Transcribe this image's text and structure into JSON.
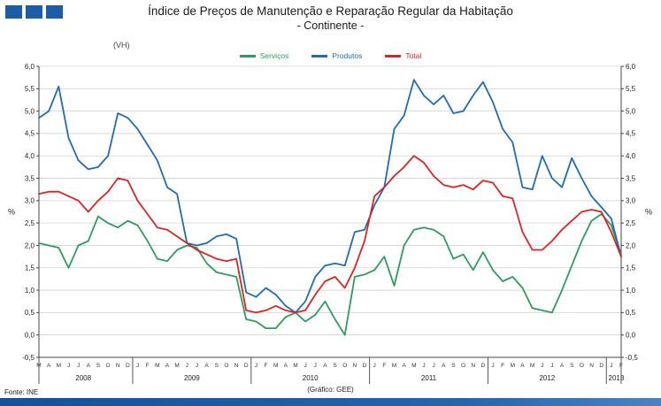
{
  "chart_data": {
    "type": "line",
    "title": "Índice de Preços de Manutenção e Reparação Regular da Habitação",
    "subtitle": "- Continente -",
    "unit_note": "(VH)",
    "ylabel_left": "%",
    "ylabel_right": "%",
    "ylim": [
      -0.5,
      6.0
    ],
    "ytick_step": 0.5,
    "ytick_labels": [
      "6,0",
      "5,5",
      "5,0",
      "4,5",
      "4,0",
      "3,5",
      "3,0",
      "2,5",
      "2,0",
      "1,5",
      "1,0",
      "0,5",
      "0,0",
      "-0,5"
    ],
    "grid": true,
    "legend_position": "top",
    "x_months": [
      "M",
      "A",
      "M",
      "J",
      "J",
      "A",
      "S",
      "O",
      "N",
      "D",
      "J",
      "F",
      "M",
      "A",
      "M",
      "J",
      "J",
      "A",
      "S",
      "O",
      "N",
      "D",
      "J",
      "F",
      "M",
      "A",
      "M",
      "J",
      "J",
      "A",
      "S",
      "O",
      "N",
      "D",
      "J",
      "F",
      "M",
      "A",
      "M",
      "J",
      "J",
      "A",
      "S",
      "O",
      "N",
      "D",
      "J",
      "F",
      "M",
      "A",
      "M",
      "J",
      "J",
      "A",
      "S",
      "O",
      "N",
      "D",
      "J",
      "F"
    ],
    "year_groups": [
      {
        "label": "2008",
        "count": 10
      },
      {
        "label": "2009",
        "count": 12
      },
      {
        "label": "2010",
        "count": 12
      },
      {
        "label": "2011",
        "count": 12
      },
      {
        "label": "2012",
        "count": 12
      },
      {
        "label": "2013",
        "count": 2
      }
    ],
    "series": [
      {
        "name": "Serviços",
        "color": "#2e9b5f",
        "values": [
          2.05,
          2.0,
          1.95,
          1.5,
          2.0,
          2.1,
          2.65,
          2.5,
          2.4,
          2.55,
          2.45,
          2.1,
          1.7,
          1.65,
          1.9,
          2.0,
          1.95,
          1.6,
          1.4,
          1.35,
          1.3,
          0.35,
          0.3,
          0.15,
          0.15,
          0.4,
          0.5,
          0.3,
          0.45,
          0.75,
          0.35,
          0.0,
          1.3,
          1.35,
          1.45,
          1.75,
          1.1,
          2.0,
          2.35,
          2.4,
          2.35,
          2.2,
          1.7,
          1.8,
          1.45,
          1.85,
          1.45,
          1.2,
          1.3,
          1.05,
          0.6,
          0.55,
          0.5,
          1.0,
          1.55,
          2.1,
          2.55,
          2.7,
          2.45,
          1.8
        ]
      },
      {
        "name": "Produtos",
        "color": "#1f6cb0",
        "values": [
          4.85,
          5.0,
          5.55,
          4.4,
          3.9,
          3.7,
          3.75,
          4.0,
          4.95,
          4.85,
          4.6,
          4.25,
          3.9,
          3.3,
          3.15,
          2.05,
          2.0,
          2.05,
          2.2,
          2.25,
          2.15,
          0.95,
          0.85,
          1.05,
          0.9,
          0.65,
          0.5,
          0.75,
          1.3,
          1.55,
          1.6,
          1.55,
          2.3,
          2.35,
          2.9,
          3.3,
          4.6,
          4.9,
          5.7,
          5.35,
          5.15,
          5.35,
          4.95,
          5.0,
          5.35,
          5.65,
          5.2,
          4.6,
          4.3,
          3.3,
          3.25,
          4.0,
          3.5,
          3.3,
          3.95,
          3.5,
          3.1,
          2.85,
          2.6,
          1.75
        ]
      },
      {
        "name": "Total",
        "color": "#d92525",
        "values": [
          3.15,
          3.2,
          3.2,
          3.1,
          3.0,
          2.75,
          3.0,
          3.2,
          3.5,
          3.45,
          3.0,
          2.7,
          2.4,
          2.35,
          2.2,
          2.05,
          1.9,
          1.8,
          1.7,
          1.65,
          1.7,
          0.55,
          0.5,
          0.55,
          0.65,
          0.55,
          0.5,
          0.55,
          0.9,
          1.2,
          1.3,
          1.05,
          1.5,
          2.1,
          3.1,
          3.3,
          3.55,
          3.75,
          4.0,
          3.85,
          3.55,
          3.35,
          3.3,
          3.35,
          3.25,
          3.45,
          3.4,
          3.1,
          3.05,
          2.3,
          1.9,
          1.9,
          2.1,
          2.35,
          2.55,
          2.75,
          2.8,
          2.75,
          2.3,
          1.75
        ]
      }
    ]
  },
  "footer": {
    "source": "Fonte: INE",
    "credit": "(Gráfico: GEE)"
  },
  "branding": {
    "accent_blue": "#1d5ca7"
  }
}
